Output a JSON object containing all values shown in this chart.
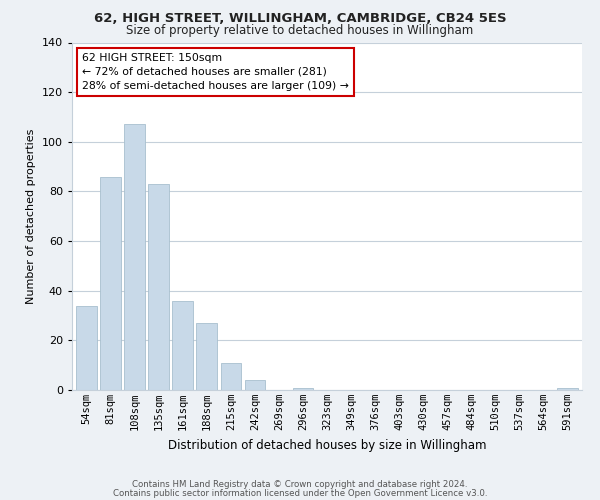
{
  "title1": "62, HIGH STREET, WILLINGHAM, CAMBRIDGE, CB24 5ES",
  "title2": "Size of property relative to detached houses in Willingham",
  "xlabel": "Distribution of detached houses by size in Willingham",
  "ylabel": "Number of detached properties",
  "bar_labels": [
    "54sqm",
    "81sqm",
    "108sqm",
    "135sqm",
    "161sqm",
    "188sqm",
    "215sqm",
    "242sqm",
    "269sqm",
    "296sqm",
    "323sqm",
    "349sqm",
    "376sqm",
    "403sqm",
    "430sqm",
    "457sqm",
    "484sqm",
    "510sqm",
    "537sqm",
    "564sqm",
    "591sqm"
  ],
  "bar_values": [
    34,
    86,
    107,
    83,
    36,
    27,
    11,
    4,
    0,
    1,
    0,
    0,
    0,
    0,
    0,
    0,
    0,
    0,
    0,
    0,
    1
  ],
  "bar_color": "#c8d9e8",
  "bar_edge_color": "#a8bfce",
  "ylim": [
    0,
    140
  ],
  "yticks": [
    0,
    20,
    40,
    60,
    80,
    100,
    120,
    140
  ],
  "annotation_line1": "62 HIGH STREET: 150sqm",
  "annotation_line2": "← 72% of detached houses are smaller (281)",
  "annotation_line3": "28% of semi-detached houses are larger (109) →",
  "annotation_box_color": "white",
  "annotation_box_edge_color": "#cc0000",
  "footer1": "Contains HM Land Registry data © Crown copyright and database right 2024.",
  "footer2": "Contains public sector information licensed under the Open Government Licence v3.0.",
  "bg_color": "#edf1f5",
  "plot_bg_color": "#ffffff",
  "grid_color": "#c5d0da",
  "title1_fontsize": 9.5,
  "title2_fontsize": 8.5,
  "xlabel_fontsize": 8.5,
  "ylabel_fontsize": 8.0,
  "tick_fontsize": 7.5,
  "ann_fontsize": 7.8,
  "footer_fontsize": 6.2
}
